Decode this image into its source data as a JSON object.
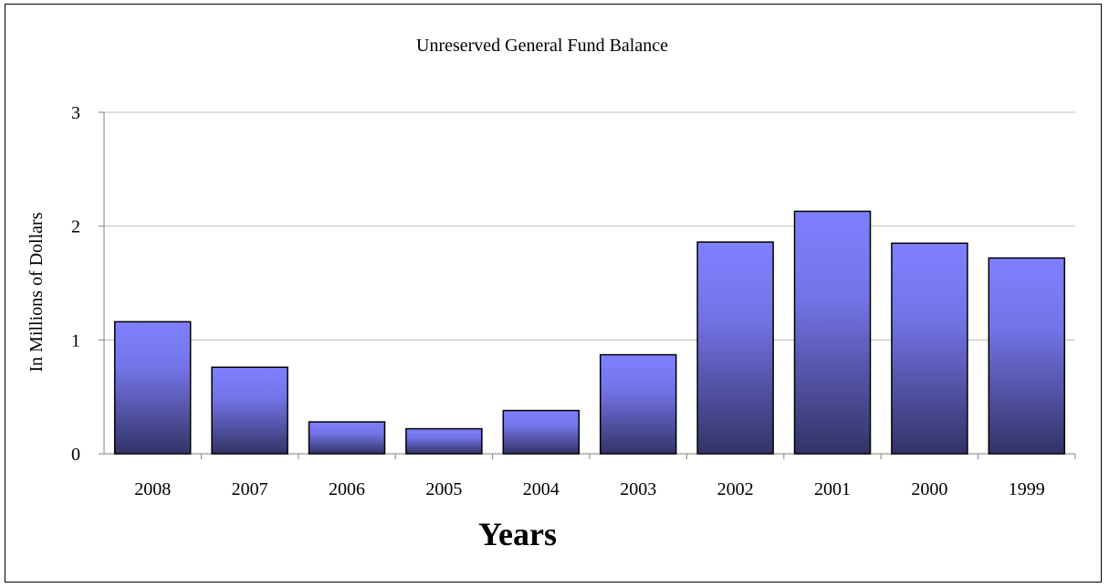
{
  "chart_data": {
    "type": "bar",
    "title": "Unreserved General Fund Balance",
    "xlabel": "Years",
    "ylabel": "In Millions of Dollars",
    "categories": [
      "2008",
      "2007",
      "2006",
      "2005",
      "2004",
      "2003",
      "2002",
      "2001",
      "2000",
      "1999"
    ],
    "values": [
      1.16,
      0.76,
      0.28,
      0.22,
      0.38,
      0.87,
      1.86,
      2.13,
      1.85,
      1.72
    ],
    "ylim": [
      0,
      3
    ],
    "yticks": [
      "0",
      "1",
      "2",
      "3"
    ],
    "grid": true,
    "legend": "none",
    "colors": {
      "bar_top": "#8080ff",
      "bar_bottom": "#333366",
      "bar_stroke": "#000000",
      "grid": "#bfbfbf",
      "axis": "#808080"
    }
  }
}
